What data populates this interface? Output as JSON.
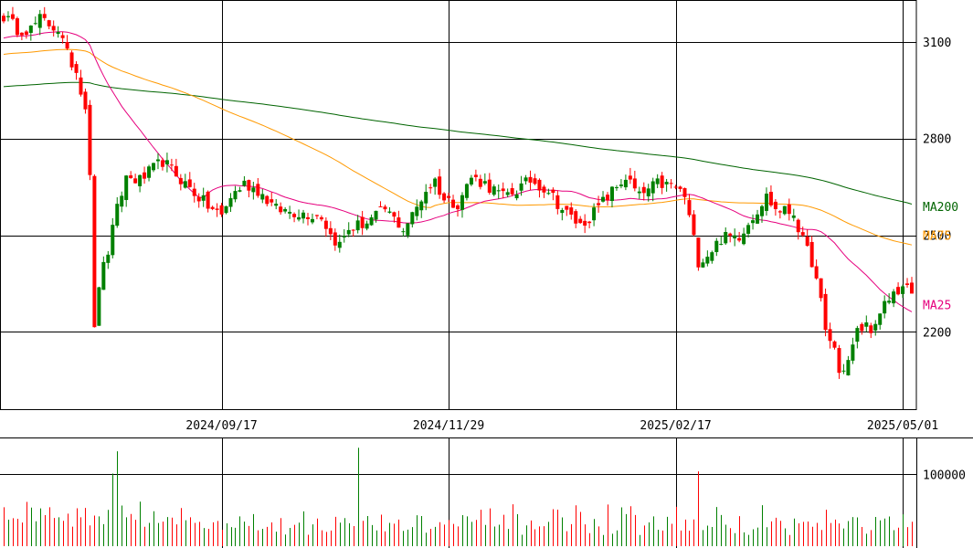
{
  "chart_data": {
    "type": "candlestick",
    "price_axis": {
      "ylim": [
        1960,
        3230
      ],
      "ticks": [
        3100,
        2800,
        2500,
        2200
      ]
    },
    "volume_axis": {
      "ylim": [
        0,
        150000
      ],
      "ticks": [
        100000
      ]
    },
    "date_labels": [
      "2024/09/17",
      "2024/11/29",
      "2025/02/17",
      "2025/05/01"
    ],
    "date_label_index": [
      48,
      98,
      148,
      198
    ],
    "ma_labels": [
      {
        "name": "MA200",
        "color": "#006400",
        "value": 2590
      },
      {
        "name": "MA75",
        "color": "#ff9900",
        "value": 2500
      },
      {
        "name": "MA25",
        "color": "#e6007e",
        "value": 2285
      }
    ],
    "colors": {
      "up": "#008000",
      "down": "#ff0000",
      "grid": "#000000"
    },
    "close_keypoints": [
      [
        0,
        3180
      ],
      [
        3,
        3140
      ],
      [
        6,
        3140
      ],
      [
        8,
        3170
      ],
      [
        12,
        3140
      ],
      [
        14,
        3060
      ],
      [
        16,
        3010
      ],
      [
        18,
        2900
      ],
      [
        19,
        2700
      ],
      [
        20,
        2200
      ],
      [
        21,
        2350
      ],
      [
        23,
        2450
      ],
      [
        25,
        2580
      ],
      [
        27,
        2680
      ],
      [
        30,
        2670
      ],
      [
        35,
        2730
      ],
      [
        40,
        2660
      ],
      [
        45,
        2590
      ],
      [
        48,
        2560
      ],
      [
        50,
        2620
      ],
      [
        53,
        2660
      ],
      [
        56,
        2640
      ],
      [
        60,
        2580
      ],
      [
        65,
        2570
      ],
      [
        70,
        2560
      ],
      [
        72,
        2500
      ],
      [
        74,
        2470
      ],
      [
        76,
        2520
      ],
      [
        80,
        2540
      ],
      [
        84,
        2580
      ],
      [
        88,
        2520
      ],
      [
        90,
        2560
      ],
      [
        93,
        2640
      ],
      [
        95,
        2670
      ],
      [
        97,
        2610
      ],
      [
        100,
        2600
      ],
      [
        103,
        2680
      ],
      [
        106,
        2660
      ],
      [
        110,
        2620
      ],
      [
        113,
        2640
      ],
      [
        116,
        2670
      ],
      [
        120,
        2640
      ],
      [
        123,
        2580
      ],
      [
        127,
        2530
      ],
      [
        130,
        2570
      ],
      [
        133,
        2620
      ],
      [
        137,
        2680
      ],
      [
        140,
        2620
      ],
      [
        144,
        2660
      ],
      [
        148,
        2650
      ],
      [
        150,
        2620
      ],
      [
        153,
        2420
      ],
      [
        155,
        2440
      ],
      [
        158,
        2490
      ],
      [
        162,
        2500
      ],
      [
        165,
        2560
      ],
      [
        168,
        2620
      ],
      [
        170,
        2580
      ],
      [
        174,
        2570
      ],
      [
        176,
        2480
      ],
      [
        178,
        2420
      ],
      [
        180,
        2290
      ],
      [
        181,
        2200
      ],
      [
        183,
        2150
      ],
      [
        184,
        2070
      ],
      [
        186,
        2110
      ],
      [
        188,
        2200
      ],
      [
        190,
        2220
      ],
      [
        192,
        2210
      ],
      [
        194,
        2280
      ],
      [
        196,
        2320
      ],
      [
        198,
        2340
      ],
      [
        200,
        2320
      ]
    ],
    "volume_spikes": [
      {
        "index": 24,
        "value": 101000
      },
      {
        "index": 25,
        "value": 132000
      },
      {
        "index": 78,
        "value": 137000
      },
      {
        "index": 153,
        "value": 104000
      }
    ]
  }
}
